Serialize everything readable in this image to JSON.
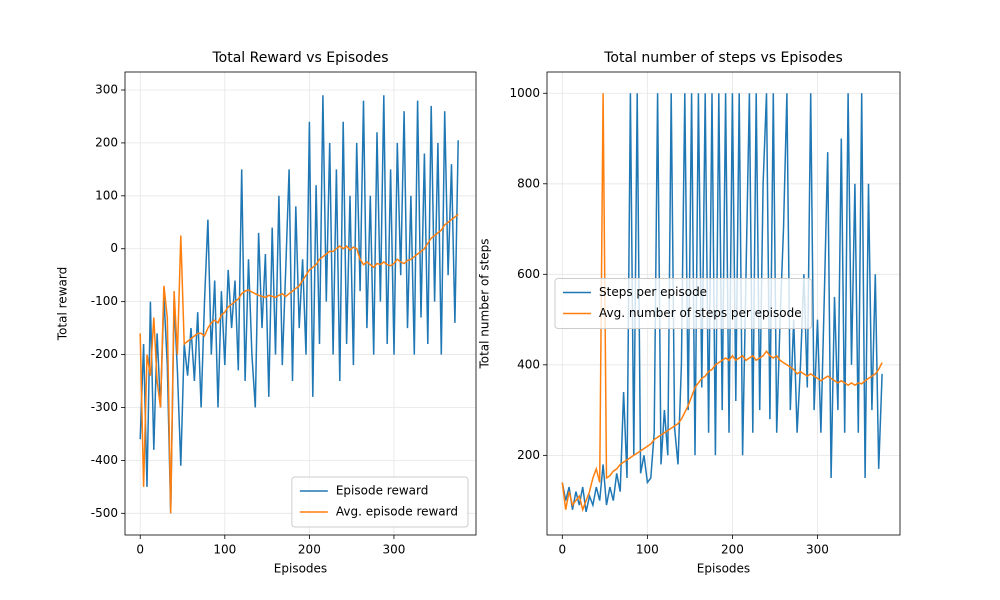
{
  "chart_data": [
    {
      "type": "line",
      "title": "Total Reward vs Episodes",
      "x_label": "Episodes",
      "y_label": "Total reward",
      "x": [
        0,
        4,
        8,
        12,
        16,
        20,
        24,
        28,
        32,
        36,
        40,
        44,
        48,
        52,
        56,
        60,
        64,
        68,
        72,
        76,
        80,
        84,
        88,
        92,
        96,
        100,
        104,
        108,
        112,
        116,
        120,
        124,
        128,
        132,
        136,
        140,
        144,
        148,
        152,
        156,
        160,
        164,
        168,
        172,
        176,
        180,
        184,
        188,
        192,
        196,
        200,
        204,
        208,
        212,
        216,
        220,
        224,
        228,
        232,
        236,
        240,
        244,
        248,
        252,
        256,
        260,
        264,
        268,
        272,
        276,
        280,
        284,
        288,
        292,
        296,
        300,
        304,
        308,
        312,
        316,
        320,
        324,
        328,
        332,
        336,
        340,
        344,
        348,
        352,
        356,
        360,
        364,
        368,
        372,
        376
      ],
      "series": [
        {
          "name": "Episode reward",
          "color": "#1f77b4",
          "values": [
            -360,
            -180,
            -450,
            -100,
            -380,
            -160,
            -300,
            -90,
            -220,
            -500,
            -100,
            -230,
            -410,
            -180,
            -240,
            -150,
            -250,
            -120,
            -300,
            -100,
            55,
            -200,
            -60,
            -300,
            -80,
            -220,
            -40,
            -150,
            -60,
            -230,
            150,
            -250,
            -20,
            -200,
            -300,
            30,
            -150,
            -10,
            -280,
            40,
            -200,
            100,
            -220,
            -40,
            150,
            -250,
            80,
            -150,
            -20,
            -200,
            240,
            -280,
            120,
            -180,
            290,
            -100,
            200,
            -200,
            150,
            -250,
            240,
            -180,
            100,
            -220,
            200,
            -80,
            280,
            -150,
            100,
            -200,
            220,
            -100,
            290,
            -180,
            150,
            -200,
            200,
            -50,
            260,
            -150,
            100,
            -200,
            280,
            -130,
            180,
            -180,
            270,
            -100,
            200,
            -200,
            260,
            -50,
            160,
            -140,
            205
          ]
        },
        {
          "name": "Avg. episode reward",
          "color": "#ff7f0e",
          "values": [
            -160,
            -450,
            -200,
            -240,
            -130,
            -250,
            -300,
            -70,
            -130,
            -500,
            -80,
            -200,
            25,
            -180,
            -175,
            -170,
            -165,
            -160,
            -160,
            -165,
            -150,
            -140,
            -135,
            -140,
            -125,
            -120,
            -110,
            -105,
            -100,
            -95,
            -85,
            -80,
            -78,
            -82,
            -85,
            -88,
            -90,
            -92,
            -88,
            -90,
            -92,
            -88,
            -85,
            -90,
            -85,
            -80,
            -75,
            -70,
            -60,
            -50,
            -40,
            -35,
            -30,
            -20,
            -15,
            -10,
            -5,
            -5,
            0,
            5,
            0,
            5,
            -2,
            3,
            0,
            -20,
            -30,
            -25,
            -30,
            -35,
            -28,
            -30,
            -25,
            -30,
            -32,
            -28,
            -20,
            -25,
            -28,
            -22,
            -20,
            -15,
            -10,
            -5,
            0,
            10,
            20,
            25,
            30,
            35,
            45,
            50,
            55,
            60,
            65
          ]
        }
      ],
      "xlim": [
        -18,
        397
      ],
      "ylim": [
        -541,
        334
      ],
      "xticks": [
        0,
        100,
        200,
        300
      ],
      "yticks": [
        -500,
        -400,
        -300,
        -200,
        -100,
        0,
        100,
        200,
        300
      ],
      "grid": true,
      "legend": "lower right"
    },
    {
      "type": "line",
      "title": "Total number of steps vs Episodes",
      "x_label": "Episodes",
      "y_label": "Total number of steps",
      "x": [
        0,
        4,
        8,
        12,
        16,
        20,
        24,
        28,
        32,
        36,
        40,
        44,
        48,
        52,
        56,
        60,
        64,
        68,
        72,
        76,
        80,
        84,
        88,
        92,
        96,
        100,
        104,
        108,
        112,
        116,
        120,
        124,
        128,
        132,
        136,
        140,
        144,
        148,
        152,
        156,
        160,
        164,
        168,
        172,
        176,
        180,
        184,
        188,
        192,
        196,
        200,
        204,
        208,
        212,
        216,
        220,
        224,
        228,
        232,
        236,
        240,
        244,
        248,
        252,
        256,
        260,
        264,
        268,
        272,
        276,
        280,
        284,
        288,
        292,
        296,
        300,
        304,
        308,
        312,
        316,
        320,
        324,
        328,
        332,
        336,
        340,
        344,
        348,
        352,
        356,
        360,
        364,
        368,
        372,
        376
      ],
      "series": [
        {
          "name": "Steps per episode",
          "color": "#1f77b4",
          "values": [
            140,
            100,
            130,
            80,
            120,
            90,
            130,
            75,
            110,
            90,
            130,
            100,
            180,
            90,
            130,
            100,
            160,
            120,
            340,
            150,
            1000,
            200,
            1000,
            160,
            200,
            140,
            150,
            250,
            1000,
            180,
            300,
            200,
            1000,
            260,
            180,
            400,
            1000,
            300,
            1000,
            200,
            1000,
            350,
            1000,
            250,
            1000,
            200,
            1000,
            300,
            1000,
            250,
            1000,
            320,
            1000,
            200,
            600,
            1000,
            250,
            1000,
            300,
            800,
            1000,
            280,
            1000,
            250,
            500,
            700,
            1000,
            300,
            500,
            250,
            400,
            600,
            350,
            1000,
            300,
            500,
            250,
            550,
            870,
            150,
            550,
            300,
            900,
            250,
            1000,
            400,
            800,
            250,
            1000,
            150,
            800,
            300,
            600,
            170,
            380
          ]
        },
        {
          "name": "Avg. number of steps per episode",
          "color": "#ff7f0e",
          "values": [
            140,
            80,
            120,
            90,
            100,
            110,
            80,
            100,
            120,
            150,
            170,
            140,
            1000,
            150,
            155,
            165,
            170,
            180,
            185,
            190,
            195,
            200,
            205,
            210,
            215,
            220,
            225,
            235,
            240,
            245,
            250,
            255,
            260,
            265,
            270,
            280,
            295,
            310,
            330,
            350,
            360,
            370,
            375,
            385,
            390,
            400,
            405,
            410,
            415,
            410,
            420,
            410,
            415,
            420,
            410,
            415,
            420,
            410,
            415,
            420,
            430,
            420,
            415,
            420,
            410,
            405,
            400,
            395,
            390,
            380,
            385,
            380,
            375,
            380,
            375,
            370,
            365,
            370,
            375,
            370,
            365,
            360,
            365,
            360,
            355,
            360,
            355,
            360,
            358,
            365,
            370,
            375,
            380,
            390,
            405
          ]
        }
      ],
      "xlim": [
        -18,
        397
      ],
      "ylim": [
        24,
        1047
      ],
      "xticks": [
        0,
        100,
        200,
        300
      ],
      "yticks": [
        200,
        400,
        600,
        800,
        1000
      ],
      "grid": true,
      "legend": "center left"
    }
  ]
}
